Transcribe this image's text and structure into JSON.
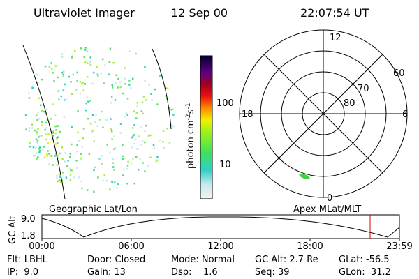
{
  "header": {
    "title": "Ultraviolet Imager",
    "date": "12 Sep 00",
    "time": "22:07:54 UT"
  },
  "colorbar": {
    "label": [
      "photon cm",
      "-2",
      "s",
      "-1"
    ],
    "ticks": [
      "100",
      "10"
    ]
  },
  "polar": {
    "mlt_labels": [
      "12",
      "18",
      "6",
      "0"
    ],
    "lat_labels": [
      "80",
      "70",
      "60"
    ]
  },
  "map_labels": {
    "left": "Geographic Lat/Lon",
    "right": "Apex MLat/MLT"
  },
  "altitude": {
    "axis_label": "GC Alt",
    "yticks": [
      "9.0",
      "1.8"
    ],
    "xticks": [
      "00:00",
      "06:00",
      "12:00",
      "18:00",
      "23:59"
    ]
  },
  "info": [
    [
      "Flt: LBHL",
      "Door: Closed",
      "Mode: Normal",
      "GC Alt: 2.7 Re",
      "GLat: -56.5"
    ],
    [
      "IP:  9.0",
      "Gain: 13",
      "Dsp:    1.6",
      "Seq: 39",
      "GLon:  31.2"
    ]
  ]
}
